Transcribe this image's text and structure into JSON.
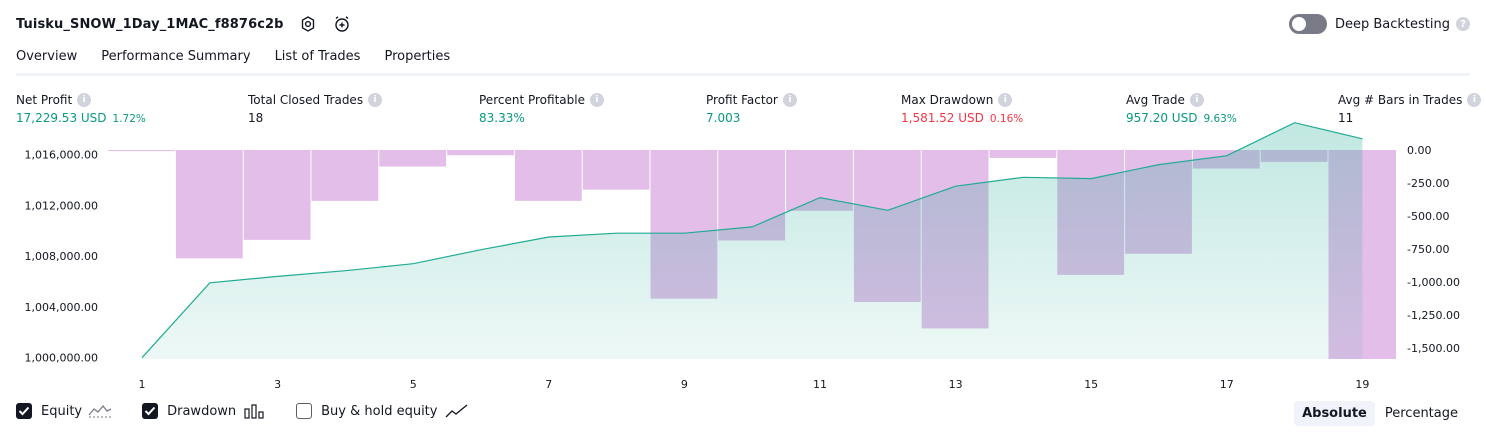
{
  "header": {
    "title": "Tuisku_SNOW_1Day_1MAC_f8876c2b",
    "deep_backtesting_label": "Deep Backtesting"
  },
  "tabs": [
    {
      "label": "Overview",
      "active": true
    },
    {
      "label": "Performance Summary",
      "active": false
    },
    {
      "label": "List of Trades",
      "active": false
    },
    {
      "label": "Properties",
      "active": false
    }
  ],
  "metrics": [
    {
      "label": "Net Profit",
      "value": "17,229.53 USD",
      "pct": "1.72%",
      "color": "#089981"
    },
    {
      "label": "Total Closed Trades",
      "value": "18",
      "pct": "",
      "color": "#131722"
    },
    {
      "label": "Percent Profitable",
      "value": "83.33%",
      "pct": "",
      "color": "#089981"
    },
    {
      "label": "Profit Factor",
      "value": "7.003",
      "pct": "",
      "color": "#089981"
    },
    {
      "label": "Max Drawdown",
      "value": "1,581.52 USD",
      "pct": "0.16%",
      "color": "#f23645"
    },
    {
      "label": "Avg Trade",
      "value": "957.20 USD",
      "pct": "9.63%",
      "color": "#089981"
    },
    {
      "label": "Avg # Bars in Trades",
      "value": "11",
      "pct": "",
      "color": "#131722"
    }
  ],
  "legend": {
    "equity_label": "Equity",
    "drawdown_label": "Drawdown",
    "buyhold_label": "Buy & hold equity"
  },
  "modes": {
    "absolute": "Absolute",
    "percentage": "Percentage"
  },
  "chart_data": {
    "type": "area",
    "colors": {
      "equity_line": "#22ab94",
      "equity_fill": "#22ab94",
      "drawdown_bar": "#ce93d8"
    },
    "x_ticks": [
      1,
      3,
      5,
      7,
      9,
      11,
      13,
      15,
      17,
      19
    ],
    "y_left": {
      "ticks": [
        "1,000,000.00",
        "1,004,000.00",
        "1,008,000.00",
        "1,012,000.00",
        "1,016,000.00"
      ],
      "tick_values": [
        1000000,
        1004000,
        1008000,
        1012000,
        1016000
      ],
      "range": [
        999900,
        1016350
      ]
    },
    "y_right": {
      "ticks": [
        "0.00",
        "-250.00",
        "-500.00",
        "-750.00",
        "-1,000.00",
        "-1,250.00",
        "-1,500.00"
      ],
      "tick_values": [
        0,
        -250,
        -500,
        -750,
        -1000,
        -1250,
        -1500
      ],
      "range": [
        -1581.52,
        0
      ]
    },
    "series": [
      {
        "name": "Equity",
        "x": [
          1,
          2,
          3,
          4,
          5,
          6,
          7,
          8,
          9,
          10,
          11,
          12,
          13,
          14,
          15,
          16,
          17,
          18,
          19
        ],
        "values": [
          1000000,
          1005900,
          1006400,
          1006850,
          1007400,
          1008500,
          1009500,
          1009800,
          1009800,
          1010300,
          1012600,
          1011600,
          1013500,
          1014200,
          1014100,
          1015200,
          1015900,
          1018500,
          1017229.53
        ]
      },
      {
        "name": "Drawdown",
        "x": [
          1,
          2,
          3,
          4,
          5,
          6,
          7,
          8,
          9,
          10,
          11,
          12,
          13,
          14,
          15,
          16,
          17,
          18,
          19
        ],
        "values": [
          -8,
          -820,
          -680,
          -385,
          -125,
          -40,
          -385,
          -300,
          -1125,
          -685,
          -460,
          -1150,
          -1350,
          -60,
          -945,
          -785,
          -140,
          -90,
          -1581.52
        ]
      }
    ]
  }
}
